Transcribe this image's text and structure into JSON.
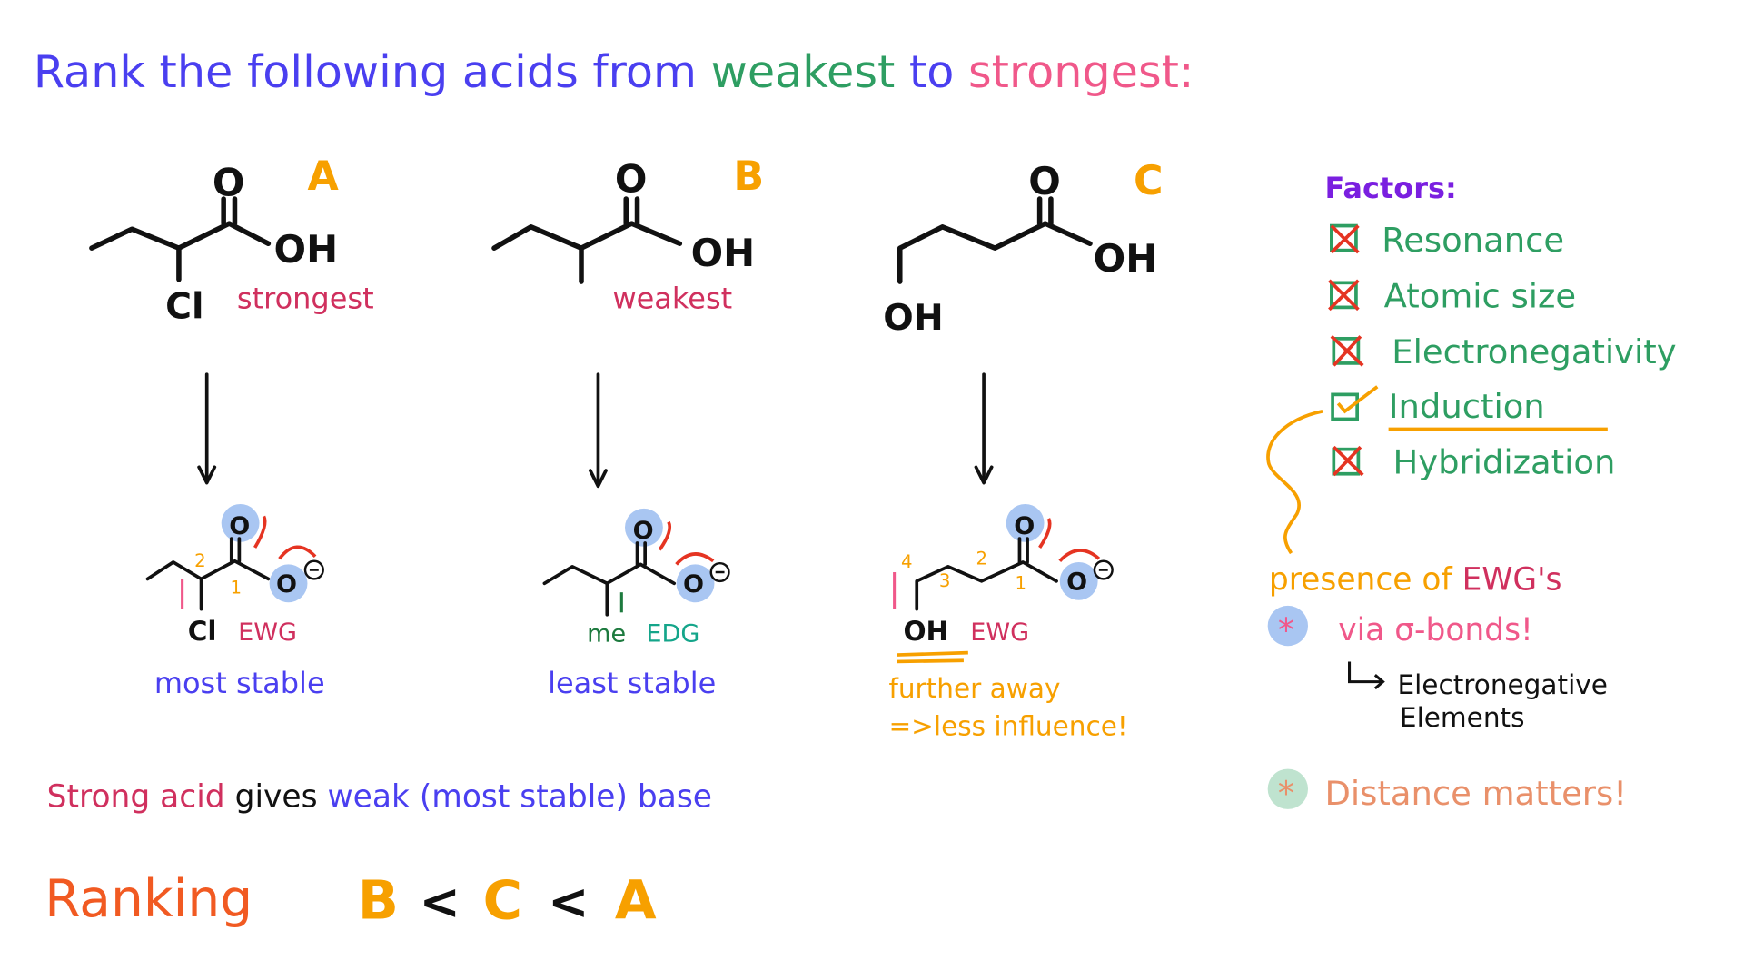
{
  "title": {
    "part1": "Rank the following acids from",
    "weakest": "weakest",
    "to": "to",
    "strongest": "strongest",
    "colon": ":"
  },
  "acids": [
    {
      "label": "A",
      "substituent": "Cl",
      "note": "strongest",
      "acid_group": "OH",
      "carbonyl_o": "O"
    },
    {
      "label": "B",
      "note": "weakest",
      "acid_group": "OH",
      "carbonyl_o": "O"
    },
    {
      "label": "C",
      "substituent": "OH",
      "acid_group": "OH",
      "carbonyl_o": "O"
    }
  ],
  "bases": [
    {
      "numbers": [
        "2",
        "1"
      ],
      "atom": "Cl",
      "effect": "EWG",
      "stability": "most stable",
      "charge": "−"
    },
    {
      "group": "me",
      "effect": "EDG",
      "stability": "least stable",
      "charge": "−"
    },
    {
      "numbers": [
        "4",
        "3",
        "2",
        "1"
      ],
      "atom": "OH",
      "effect": "EWG",
      "note1": "further away",
      "note2": "=>less influence!",
      "charge": "−"
    }
  ],
  "factors": {
    "heading": "Factors:",
    "items": [
      {
        "label": "Resonance",
        "checked": false
      },
      {
        "label": "Atomic size",
        "checked": false
      },
      {
        "label": "Electronegativity",
        "checked": false
      },
      {
        "label": "Induction",
        "checked": true
      },
      {
        "label": "Hybridization",
        "checked": false
      }
    ]
  },
  "notes": {
    "presence": "presence of",
    "ewgs": "EWG's",
    "via": "via σ-bonds!",
    "electronegative": "Electronegative",
    "elements": "Elements",
    "distance": "Distance matters!",
    "asterisk": "*"
  },
  "summary": {
    "strong_acid": "Strong acid",
    "gives": "gives",
    "weak_base": "weak (most stable) base"
  },
  "ranking": {
    "label": "Ranking",
    "order": [
      "B",
      "<",
      "C",
      "<",
      "A"
    ]
  },
  "colors": {
    "title": "#4a3ff0",
    "green": "#2e9e62",
    "pink": "#f0588a",
    "orange": "#f7a000",
    "crimson": "#d0305e",
    "purple": "#7a1fe0",
    "red": "#e53422",
    "blue_circle": "#a9c6f2",
    "rank": "#f15a22"
  }
}
